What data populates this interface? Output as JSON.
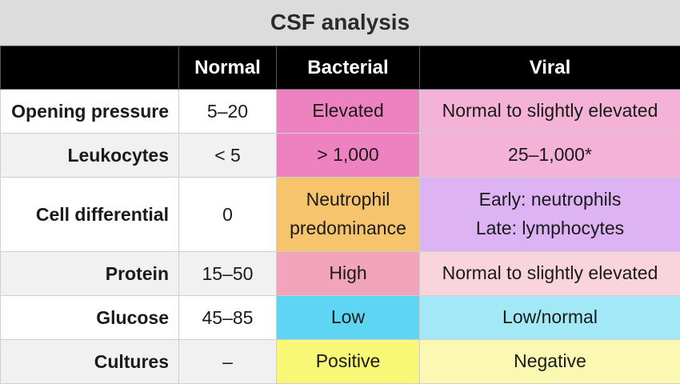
{
  "title": "CSF analysis",
  "columns": [
    "",
    "Normal",
    "Bacterial",
    "Viral"
  ],
  "rows": [
    {
      "label": "Opening pressure",
      "normal": "5–20",
      "bacterial": [
        "Elevated"
      ],
      "viral": [
        "Normal to slightly elevated"
      ],
      "colors": {
        "bacterial": "#ee82c0",
        "viral": "#f3b2d6"
      }
    },
    {
      "label": "Leukocytes",
      "normal": "< 5",
      "bacterial": [
        "> 1,000"
      ],
      "viral": [
        "25–1,000*"
      ],
      "colors": {
        "bacterial": "#ee82c0",
        "viral": "#f3b2d6"
      }
    },
    {
      "label": "Cell differential",
      "normal": "0",
      "bacterial": [
        "Neutrophil",
        "predominance"
      ],
      "viral": [
        "Early: neutrophils",
        "Late: lymphocytes"
      ],
      "colors": {
        "bacterial": "#f7c46e",
        "viral": "#deb3f3"
      }
    },
    {
      "label": "Protein",
      "normal": "15–50",
      "bacterial": [
        "High"
      ],
      "viral": [
        "Normal to slightly elevated"
      ],
      "colors": {
        "bacterial": "#f1a4bb",
        "viral": "#f9d4dd"
      }
    },
    {
      "label": "Glucose",
      "normal": "45–85",
      "bacterial": [
        "Low"
      ],
      "viral": [
        "Low/normal"
      ],
      "colors": {
        "bacterial": "#5ed5f3",
        "viral": "#a2e8f6"
      }
    },
    {
      "label": "Cultures",
      "normal": "–",
      "bacterial": [
        "Positive"
      ],
      "viral": [
        "Negative"
      ],
      "colors": {
        "bacterial": "#f9f776",
        "viral": "#fbf9b1"
      }
    }
  ]
}
